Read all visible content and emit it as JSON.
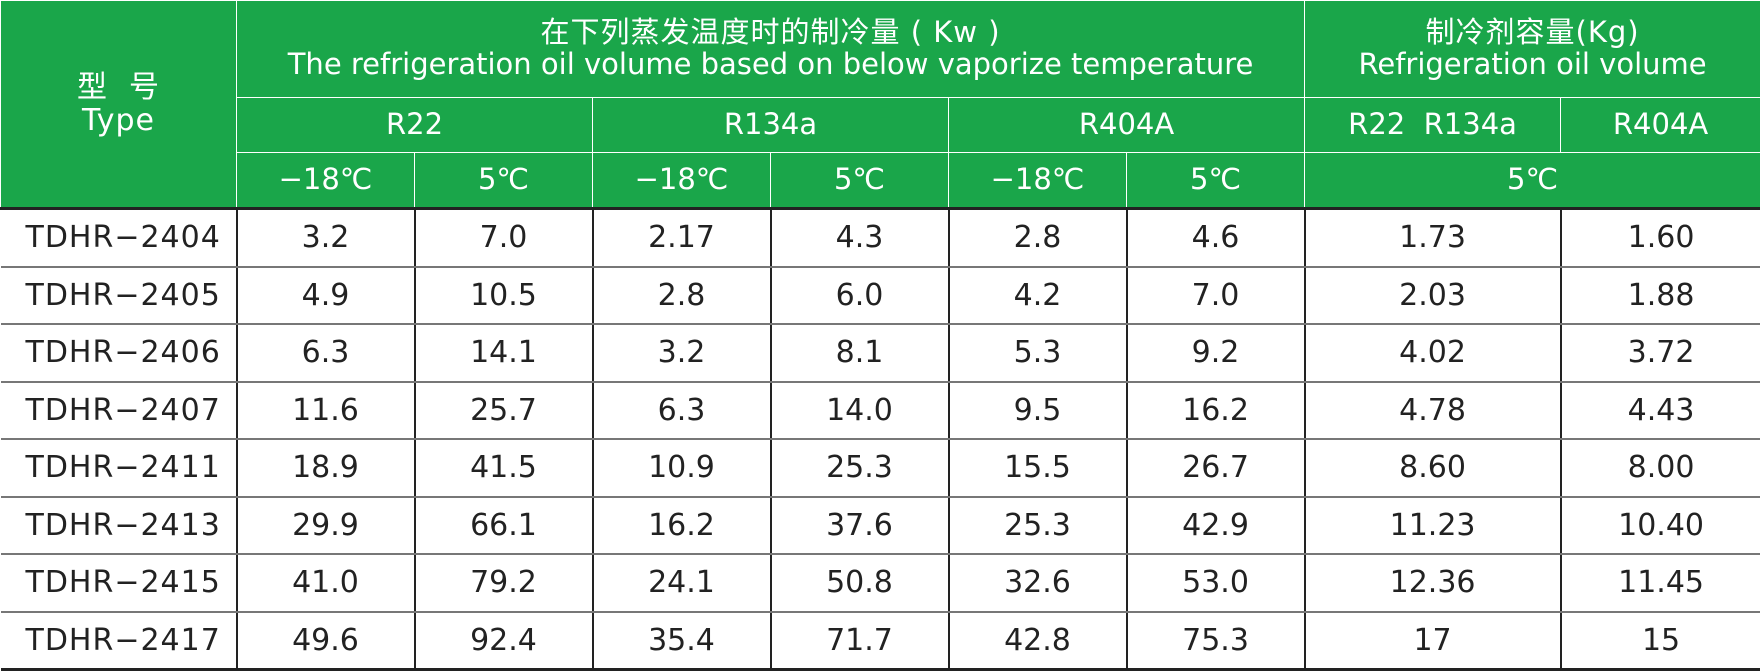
{
  "header": {
    "type_zh": "型  号",
    "type_en": "Type",
    "capacity_zh": "在下列蒸发温度时的制冷量 ( Kw )",
    "capacity_en": "The refrigeration oil volume based on below vaporize temperature",
    "oil_zh": "制冷剂容量(Kg)",
    "oil_en": "Refrigeration oil volume",
    "refrigerants": [
      "R22",
      "R134a",
      "R404A"
    ],
    "oil_refrigerants": [
      "R22  R134a",
      "R404A"
    ],
    "temps": [
      "−18℃",
      "5℃",
      "−18℃",
      "5℃",
      "−18℃",
      "5℃"
    ],
    "oil_temp": "5℃"
  },
  "rows": [
    [
      "TDHR−2404",
      "3.2",
      "7.0",
      "2.17",
      "4.3",
      "2.8",
      "4.6",
      "1.73",
      "1.60"
    ],
    [
      "TDHR−2405",
      "4.9",
      "10.5",
      "2.8",
      "6.0",
      "4.2",
      "7.0",
      "2.03",
      "1.88"
    ],
    [
      "TDHR−2406",
      "6.3",
      "14.1",
      "3.2",
      "8.1",
      "5.3",
      "9.2",
      "4.02",
      "3.72"
    ],
    [
      "TDHR−2407",
      "11.6",
      "25.7",
      "6.3",
      "14.0",
      "9.5",
      "16.2",
      "4.78",
      "4.43"
    ],
    [
      "TDHR−2411",
      "18.9",
      "41.5",
      "10.9",
      "25.3",
      "15.5",
      "26.7",
      "8.60",
      "8.00"
    ],
    [
      "TDHR−2413",
      "29.9",
      "66.1",
      "16.2",
      "37.6",
      "25.3",
      "42.9",
      "11.23",
      "10.40"
    ],
    [
      "TDHR−2415",
      "41.0",
      "79.2",
      "24.1",
      "50.8",
      "32.6",
      "53.0",
      "12.36",
      "11.45"
    ],
    [
      "TDHR−2417",
      "49.6",
      "92.4",
      "35.4",
      "71.7",
      "42.8",
      "75.3",
      "17",
      "15"
    ]
  ]
}
